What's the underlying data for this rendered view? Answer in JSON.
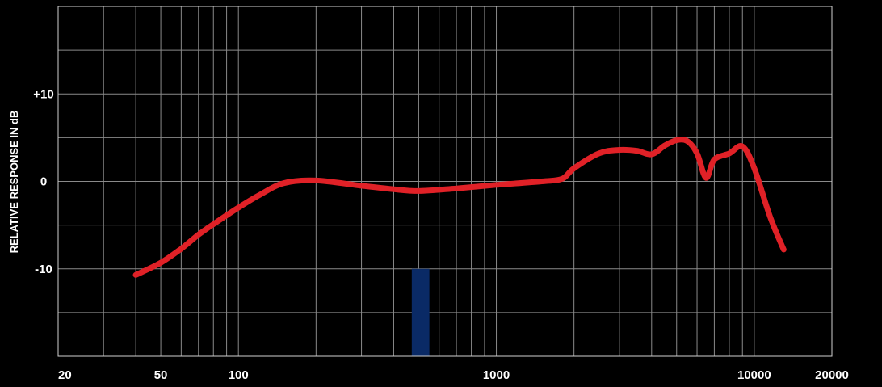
{
  "chart_data": {
    "type": "line",
    "title": "",
    "xlabel": "",
    "ylabel": "RELATIVE RESPONSE IN dB",
    "x_scale": "log",
    "xlim": [
      20,
      20000
    ],
    "ylim": [
      -20,
      20
    ],
    "grid": true,
    "x_tick_labels": [
      {
        "value": 20,
        "label": "20"
      },
      {
        "value": 50,
        "label": "50"
      },
      {
        "value": 100,
        "label": "100"
      },
      {
        "value": 1000,
        "label": "1000"
      },
      {
        "value": 10000,
        "label": "10000"
      },
      {
        "value": 20000,
        "label": "20000"
      }
    ],
    "y_tick_labels": [
      {
        "value": 10,
        "label": "+10"
      },
      {
        "value": 0,
        "label": "0"
      },
      {
        "value": -10,
        "label": "-10"
      }
    ],
    "highlight_band": {
      "x_start": 470,
      "x_end": 550,
      "y_top": -10,
      "y_bottom": -20,
      "color": "#0a2a66"
    },
    "series": [
      {
        "color": "#e02127",
        "points": [
          [
            40,
            -10.7
          ],
          [
            50,
            -9.3
          ],
          [
            60,
            -7.7
          ],
          [
            70,
            -6.1
          ],
          [
            80,
            -4.9
          ],
          [
            100,
            -3.0
          ],
          [
            120,
            -1.6
          ],
          [
            150,
            -0.2
          ],
          [
            200,
            0.1
          ],
          [
            300,
            -0.5
          ],
          [
            400,
            -0.9
          ],
          [
            500,
            -1.1
          ],
          [
            700,
            -0.8
          ],
          [
            1000,
            -0.4
          ],
          [
            1500,
            0.0
          ],
          [
            1800,
            0.3
          ],
          [
            2000,
            1.5
          ],
          [
            2500,
            3.2
          ],
          [
            3000,
            3.6
          ],
          [
            3500,
            3.5
          ],
          [
            4000,
            3.1
          ],
          [
            4500,
            4.1
          ],
          [
            5000,
            4.7
          ],
          [
            5500,
            4.6
          ],
          [
            6000,
            3.2
          ],
          [
            6500,
            0.4
          ],
          [
            7000,
            2.5
          ],
          [
            8000,
            3.2
          ],
          [
            9000,
            4.0
          ],
          [
            10000,
            1.5
          ],
          [
            11500,
            -4.0
          ],
          [
            13000,
            -7.8
          ]
        ]
      }
    ]
  },
  "colors": {
    "background": "#000000",
    "grid": "#8a8a8a",
    "frame": "#d0d0d0",
    "line": "#e02127",
    "band": "#0a2a66"
  }
}
